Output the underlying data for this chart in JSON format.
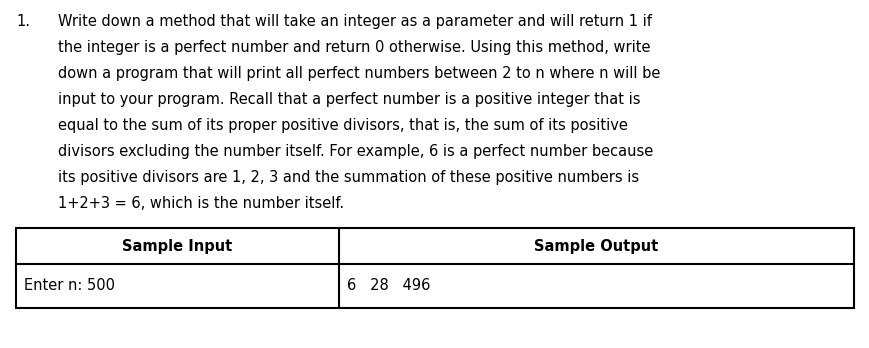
{
  "background_color": "#ffffff",
  "text_color": "#000000",
  "number_prefix": "1.",
  "lines": [
    "Write down a method that will take an integer as a parameter and will return 1 if",
    "the integer is a perfect number and return 0 otherwise. Using this method, write",
    "down a program that will print all perfect numbers between 2 to n where n will be",
    "input to your program. Recall that a perfect number is a positive integer that is",
    "equal to the sum of its proper positive divisors, that is, the sum of its positive",
    "divisors excluding the number itself. For example, 6 is a perfect number because",
    "its positive divisors are 1, 2, 3 and the summation of these positive numbers is",
    "1+2+3 = 6, which is the number itself."
  ],
  "table_header_left": "Sample Input",
  "table_header_right": "Sample Output",
  "table_data_left": "Enter n: 500",
  "table_data_right": "6   28   496",
  "font_size": 10.5,
  "font_size_table": 10.5,
  "fig_width": 8.7,
  "fig_height": 3.48,
  "dpi": 100
}
